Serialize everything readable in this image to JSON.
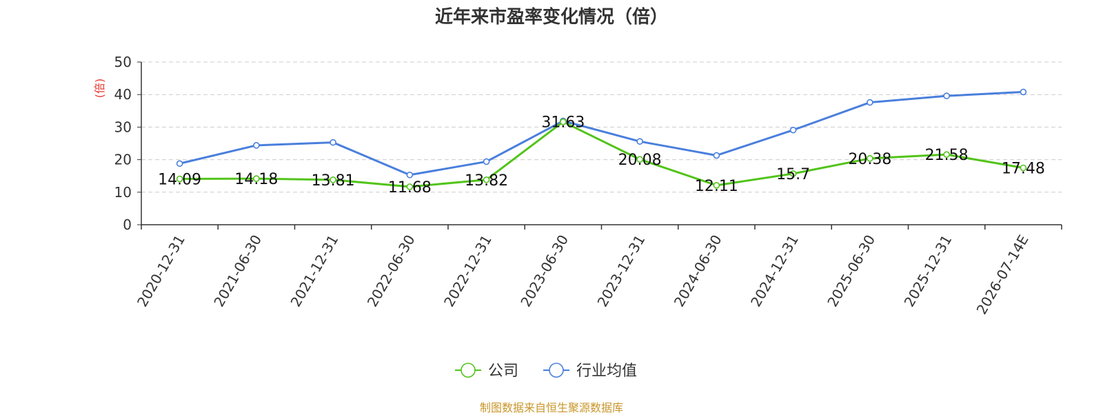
{
  "chart_data": {
    "type": "line",
    "title": "近年来市盈率变化情况（倍）",
    "ylabel": "(倍)",
    "xlabel": "",
    "ylim": [
      0,
      50
    ],
    "yticks": [
      0,
      10,
      20,
      30,
      40,
      50
    ],
    "categories": [
      "2020-12-31",
      "2021-06-30",
      "2021-12-31",
      "2022-06-30",
      "2022-12-31",
      "2023-06-30",
      "2023-12-31",
      "2024-06-30",
      "2024-12-31",
      "2025-06-30",
      "2025-12-31",
      "2026-07-14E"
    ],
    "series": [
      {
        "name": "公司",
        "color": "#52c41a",
        "values": [
          14.09,
          14.18,
          13.81,
          11.68,
          13.82,
          31.63,
          20.08,
          12.11,
          15.7,
          20.38,
          21.58,
          17.48
        ],
        "labels": [
          "14.09",
          "14.18",
          "13.81",
          "11.68",
          "13.82",
          "31.63",
          "20.08",
          "12.11",
          "15.7",
          "20.38",
          "21.58",
          "17.48"
        ]
      },
      {
        "name": "行业均值",
        "color": "#4a7fdc",
        "values": [
          18.8,
          24.4,
          25.3,
          15.3,
          19.4,
          31.9,
          25.6,
          21.3,
          29.1,
          37.6,
          39.6,
          40.8
        ]
      }
    ],
    "grid": true,
    "legend_position": "bottom-center",
    "source_note": "制图数据来自恒生聚源数据库"
  }
}
